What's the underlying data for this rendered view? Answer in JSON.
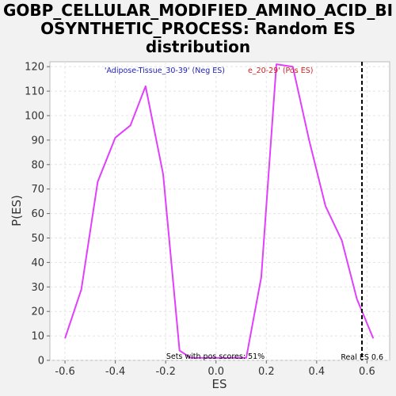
{
  "chart_data": {
    "type": "line",
    "title_lines": [
      "GOBP_CELLULAR_MODIFIED_AMINO_ACID_BI",
      "OSYNTHETIC_PROCESS: Random ES",
      "distribution"
    ],
    "xlabel": "ES",
    "ylabel": "P(ES)",
    "xlim": [
      -0.66,
      0.69
    ],
    "ylim": [
      0,
      122
    ],
    "xticks": [
      -0.6,
      -0.4,
      -0.2,
      0.0,
      0.2,
      0.4,
      0.6
    ],
    "xtick_labels": [
      "-0.6",
      "-0.4",
      "-0.2",
      "0.0",
      "0.2",
      "0.4",
      "0.6"
    ],
    "yticks": [
      0,
      10,
      20,
      30,
      40,
      50,
      60,
      70,
      80,
      90,
      100,
      110,
      120
    ],
    "ytick_labels": [
      "0",
      "10",
      "20",
      "30",
      "40",
      "50",
      "60",
      "70",
      "80",
      "90",
      "100",
      "110",
      "120"
    ],
    "grid": true,
    "series": [
      {
        "color": "#e040fb",
        "x": [
          -0.6,
          -0.535,
          -0.47,
          -0.4,
          -0.34,
          -0.28,
          -0.21,
          -0.145,
          -0.1,
          0.12,
          0.18,
          0.24,
          0.305,
          0.37,
          0.435,
          0.5,
          0.56,
          0.625
        ],
        "y": [
          9,
          29,
          73,
          91,
          96,
          112,
          76,
          4,
          1,
          1,
          34,
          121,
          120,
          90,
          63,
          49,
          25,
          9
        ]
      }
    ],
    "legend": {
      "placement": "top-center",
      "neg_label": "'Adipose-Tissue_30-39' (Neg ES)",
      "pos_label": "e_20-29' (Pos ES)",
      "neg_color": "#2222bb",
      "pos_color": "#cc2222"
    },
    "real_es": {
      "value": 0.58,
      "label": "Real ES 0.6"
    },
    "annotation": "Sets with pos scores: 51%"
  }
}
